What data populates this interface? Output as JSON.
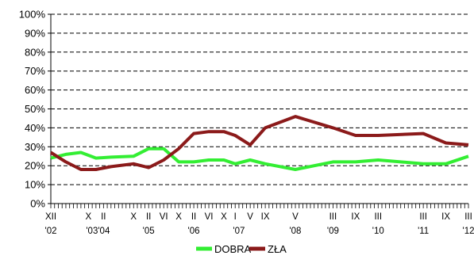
{
  "chart_data": {
    "type": "line",
    "ylim": [
      0,
      100
    ],
    "y_ticks": [
      "0%",
      "10%",
      "20%",
      "30%",
      "40%",
      "50%",
      "60%",
      "70%",
      "80%",
      "90%",
      "100%"
    ],
    "x_range": [
      2002.917,
      2012.167
    ],
    "x_labels_month": [
      {
        "x": 2002.917,
        "label": "XII"
      },
      {
        "x": 2003.75,
        "label": "X"
      },
      {
        "x": 2004.083,
        "label": "II"
      },
      {
        "x": 2004.75,
        "label": "X"
      },
      {
        "x": 2005.083,
        "label": "II"
      },
      {
        "x": 2005.417,
        "label": "VI"
      },
      {
        "x": 2005.75,
        "label": "X"
      },
      {
        "x": 2006.083,
        "label": "II"
      },
      {
        "x": 2006.417,
        "label": "VI"
      },
      {
        "x": 2006.75,
        "label": "X"
      },
      {
        "x": 2007.0,
        "label": "I"
      },
      {
        "x": 2007.333,
        "label": "V"
      },
      {
        "x": 2007.667,
        "label": "IX"
      },
      {
        "x": 2008.333,
        "label": "V"
      },
      {
        "x": 2009.167,
        "label": "III"
      },
      {
        "x": 2009.667,
        "label": "IX"
      },
      {
        "x": 2010.167,
        "label": "III"
      },
      {
        "x": 2011.167,
        "label": "III"
      },
      {
        "x": 2011.667,
        "label": "IX"
      },
      {
        "x": 2012.167,
        "label": "III"
      }
    ],
    "x_labels_year": [
      {
        "x": 2002.917,
        "label": "'02"
      },
      {
        "x": 2003.917,
        "label": "'03'04"
      },
      {
        "x": 2005.083,
        "label": "'05"
      },
      {
        "x": 2006.083,
        "label": "'06"
      },
      {
        "x": 2007.083,
        "label": "'07"
      },
      {
        "x": 2008.333,
        "label": "'08"
      },
      {
        "x": 2009.167,
        "label": "'09"
      },
      {
        "x": 2010.167,
        "label": "'10"
      },
      {
        "x": 2011.167,
        "label": "'11"
      },
      {
        "x": 2012.167,
        "label": "'12"
      }
    ],
    "minor_ticks_per_year": 12,
    "grid": "dashed-horizontal",
    "legend": "bottom-center",
    "series": [
      {
        "name": "DOBRA",
        "color": "#33ee33",
        "points": [
          [
            2002.917,
            24
          ],
          [
            2003.25,
            26
          ],
          [
            2003.583,
            27
          ],
          [
            2003.917,
            24
          ],
          [
            2004.25,
            24.5
          ],
          [
            2004.75,
            25
          ],
          [
            2005.083,
            29
          ],
          [
            2005.417,
            29
          ],
          [
            2005.75,
            22
          ],
          [
            2006.083,
            22
          ],
          [
            2006.417,
            23
          ],
          [
            2006.75,
            23
          ],
          [
            2007.0,
            21
          ],
          [
            2007.333,
            23
          ],
          [
            2007.667,
            21
          ],
          [
            2008.333,
            18
          ],
          [
            2009.167,
            22
          ],
          [
            2009.667,
            22
          ],
          [
            2010.167,
            23
          ],
          [
            2011.167,
            21
          ],
          [
            2011.667,
            21
          ],
          [
            2012.167,
            25
          ]
        ]
      },
      {
        "name": "ZŁA",
        "color": "#8b1a1a",
        "points": [
          [
            2002.917,
            27
          ],
          [
            2003.25,
            22
          ],
          [
            2003.583,
            18
          ],
          [
            2003.917,
            18
          ],
          [
            2004.25,
            19.5
          ],
          [
            2004.75,
            21
          ],
          [
            2005.083,
            19
          ],
          [
            2005.417,
            23
          ],
          [
            2005.75,
            29
          ],
          [
            2006.083,
            37
          ],
          [
            2006.417,
            38
          ],
          [
            2006.75,
            38
          ],
          [
            2007.0,
            36
          ],
          [
            2007.333,
            31
          ],
          [
            2007.667,
            40
          ],
          [
            2008.333,
            46
          ],
          [
            2009.167,
            40
          ],
          [
            2009.667,
            36
          ],
          [
            2010.167,
            36
          ],
          [
            2011.167,
            37
          ],
          [
            2011.667,
            32
          ],
          [
            2012.167,
            31
          ]
        ]
      }
    ]
  }
}
